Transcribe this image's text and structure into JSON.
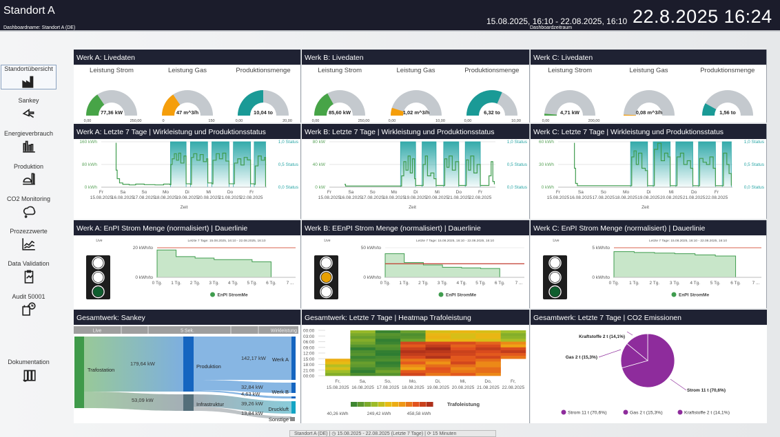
{
  "header": {
    "title": "Standort A",
    "dashboard_name": "Dashboardname: Standort A (DE)",
    "date_range": "15.08.2025, 16:10 - 22.08.2025, 16:10",
    "date_range_label": "Dashboardzeitraum",
    "clock": "22.8.2025  16:24"
  },
  "sidebar": {
    "items": [
      {
        "label": "Standortübersicht",
        "icon": "factory-icon",
        "selected": true
      },
      {
        "label": "Sankey",
        "icon": "sankey-icon"
      },
      {
        "label": "Energieverbrauch",
        "icon": "bar-chart-icon"
      },
      {
        "label": "Produktion",
        "icon": "production-tank-icon"
      },
      {
        "label": "CO2 Monitoring",
        "icon": "cloud-icon"
      },
      {
        "label": "Prozezzwerte",
        "icon": "line-chart-icon"
      },
      {
        "label": "Data Validation",
        "icon": "clipboard-icon"
      },
      {
        "label": "Audit 50001",
        "icon": "calendar-clock-icon"
      },
      {
        "label": "Dokumentation",
        "icon": "binders-icon"
      }
    ]
  },
  "colors": {
    "strom": "#47a447",
    "gas": "#f59e0b",
    "produktion": "#1a9a96",
    "gauge_bg": "#c4c9ce",
    "status": "#2aa6a6",
    "line": "#3f9c4e",
    "limit": "#e08070",
    "co2": "#8e2c9c",
    "panel_header": "#1f2233"
  },
  "live": [
    {
      "title": "Werk A: Livedaten",
      "gauges": [
        {
          "label": "Leistung Strom",
          "value": "77,36 kW",
          "min": "0,00",
          "max": "250,00",
          "fraction": 0.31,
          "color": "strom"
        },
        {
          "label": "Leistung Gas",
          "value": "47 m^3/h",
          "min": "0",
          "max": "150",
          "fraction": 0.31,
          "color": "gas"
        },
        {
          "label": "Produktionsmenge",
          "value": "10,04 to",
          "min": "0,00",
          "max": "20,00",
          "fraction": 0.5,
          "color": "produktion"
        }
      ]
    },
    {
      "title": "Werk B: Livedaten",
      "gauges": [
        {
          "label": "Leistung Strom",
          "value": "85,60 kW",
          "min": "0,00",
          "max": "250,00",
          "fraction": 0.34,
          "color": "strom"
        },
        {
          "label": "Leistung Gas",
          "value": "1,02 m^3/h",
          "min": "0,00",
          "max": "10,00",
          "fraction": 0.1,
          "color": "gas"
        },
        {
          "label": "Produktionsmenge",
          "value": "6,32 to",
          "min": "0,00",
          "max": "10,00",
          "fraction": 0.63,
          "color": "produktion"
        }
      ]
    },
    {
      "title": "Werk C: Livedaten",
      "gauges": [
        {
          "label": "Leistung Strom",
          "value": "4,71 kW",
          "min": "0,00",
          "max": "200,00",
          "fraction": 0.024,
          "color": "strom"
        },
        {
          "label": "Leistung Gas",
          "value": "0,08 m^3/h",
          "min": "",
          "max": "",
          "fraction": 0.01,
          "color": "gas"
        },
        {
          "label": "Produktionsmenge",
          "value": "1,56 to",
          "min": "",
          "max": "",
          "fraction": 0.16,
          "color": "produktion"
        }
      ]
    }
  ],
  "chart_data": [
    {
      "type": "line",
      "title": "Werk A: Letzte 7 Tage | Wirkleistung und Produktionsstatus",
      "xlabel": "Zeit",
      "xticks": [
        [
          "Fr",
          "15.08.2025"
        ],
        [
          "Sa",
          "16.08.2025"
        ],
        [
          "So",
          "17.08.2025"
        ],
        [
          "Mo",
          "18.08.2025"
        ],
        [
          "Di",
          "19.08.2025"
        ],
        [
          "Mi",
          "20.08.2025"
        ],
        [
          "Do",
          "21.08.2025"
        ],
        [
          "Fr",
          "22.08.2025"
        ]
      ],
      "xlim_days": [
        0,
        7.7
      ],
      "ylim": [
        0,
        160
      ],
      "yticks": [
        "0 kWh",
        "80 kWh",
        "160 kWh"
      ],
      "y2ticks": [
        "0,0 Status",
        "0,5 Status",
        "1,0 Status"
      ],
      "status_on": [
        [
          3.22,
          3.95
        ],
        [
          4.15,
          4.95
        ],
        [
          5.15,
          5.95
        ],
        [
          6.15,
          6.95
        ],
        [
          7.12,
          7.65
        ]
      ],
      "power": [
        [
          0.67,
          155
        ],
        [
          0.69,
          60
        ],
        [
          0.74,
          30
        ],
        [
          0.85,
          15
        ],
        [
          1,
          10
        ],
        [
          1.3,
          8
        ],
        [
          1.6,
          11
        ],
        [
          2,
          9
        ],
        [
          2.5,
          8
        ],
        [
          2.9,
          11
        ],
        [
          3.2,
          9
        ],
        [
          3.24,
          80
        ],
        [
          3.3,
          100
        ],
        [
          3.4,
          118
        ],
        [
          3.5,
          95
        ],
        [
          3.6,
          120
        ],
        [
          3.7,
          85
        ],
        [
          3.85,
          110
        ],
        [
          3.95,
          12
        ],
        [
          4.15,
          10
        ],
        [
          4.2,
          105
        ],
        [
          4.3,
          118
        ],
        [
          4.45,
          95
        ],
        [
          4.6,
          115
        ],
        [
          4.75,
          90
        ],
        [
          4.9,
          100
        ],
        [
          4.96,
          15
        ],
        [
          5.15,
          12
        ],
        [
          5.2,
          95
        ],
        [
          5.35,
          118
        ],
        [
          5.5,
          100
        ],
        [
          5.65,
          120
        ],
        [
          5.8,
          92
        ],
        [
          5.95,
          12
        ],
        [
          6.15,
          12
        ],
        [
          6.2,
          85
        ],
        [
          6.35,
          100
        ],
        [
          6.5,
          78
        ],
        [
          6.65,
          105
        ],
        [
          6.8,
          96
        ],
        [
          6.95,
          12
        ],
        [
          7.12,
          10
        ],
        [
          7.17,
          75
        ],
        [
          7.3,
          110
        ],
        [
          7.45,
          95
        ],
        [
          7.6,
          105
        ],
        [
          7.65,
          2
        ]
      ]
    },
    {
      "type": "line",
      "title": "Werk B: Letzte 7 Tage | Wirkleistung und Produktionsstatus",
      "xlabel": "Zeit",
      "xticks": [
        [
          "Fr",
          "15.08.2025"
        ],
        [
          "Sa",
          "16.08.2025"
        ],
        [
          "So",
          "17.08.2025"
        ],
        [
          "Mo",
          "18.08.2025"
        ],
        [
          "Di",
          "19.08.2025"
        ],
        [
          "Mi",
          "20.08.2025"
        ],
        [
          "Do",
          "21.08.2025"
        ],
        [
          "Fr",
          "22.08.2025"
        ]
      ],
      "xlim_days": [
        0,
        7.7
      ],
      "ylim": [
        0,
        80
      ],
      "yticks": [
        "0 kW",
        "40 kW",
        "80 kW"
      ],
      "y2ticks": [
        "0,0 Status",
        "0,5 Status",
        "1,0 Status"
      ],
      "status_on": [
        [
          3.3,
          4.0
        ],
        [
          4.3,
          4.95
        ],
        [
          5.3,
          6.0
        ],
        [
          6.3,
          7.0
        ]
      ],
      "power": [
        [
          0.7,
          5
        ],
        [
          0.75,
          2
        ],
        [
          1.5,
          2
        ],
        [
          2.5,
          2
        ],
        [
          3.3,
          2
        ],
        [
          3.35,
          20
        ],
        [
          3.45,
          45
        ],
        [
          3.55,
          30
        ],
        [
          3.65,
          55
        ],
        [
          3.75,
          25
        ],
        [
          3.85,
          50
        ],
        [
          3.95,
          15
        ],
        [
          4.0,
          3
        ],
        [
          4.3,
          3
        ],
        [
          4.35,
          40
        ],
        [
          4.45,
          55
        ],
        [
          4.55,
          20
        ],
        [
          4.7,
          25
        ],
        [
          4.85,
          15
        ],
        [
          4.95,
          3
        ],
        [
          5.3,
          3
        ],
        [
          5.35,
          50
        ],
        [
          5.45,
          35
        ],
        [
          5.55,
          55
        ],
        [
          5.7,
          30
        ],
        [
          5.85,
          45
        ],
        [
          6.0,
          3
        ],
        [
          6.3,
          3
        ],
        [
          6.35,
          48
        ],
        [
          6.45,
          30
        ],
        [
          6.55,
          55
        ],
        [
          6.7,
          25
        ],
        [
          6.85,
          40
        ],
        [
          7.0,
          3
        ],
        [
          7.3,
          3
        ],
        [
          7.4,
          20
        ],
        [
          7.5,
          45
        ],
        [
          7.58,
          10
        ],
        [
          7.65,
          5
        ]
      ]
    },
    {
      "type": "line",
      "title": "Werk C: Letzte 7 Tage | Wirkleistung und Produktionsstatus",
      "xlabel": "Zeit",
      "xticks": [
        [
          "Fr",
          "15.08.2025"
        ],
        [
          "Sa",
          "16.08.2025"
        ],
        [
          "So",
          "17.08.2025"
        ],
        [
          "Mo",
          "18.08.2025"
        ],
        [
          "Di",
          "19.08.2025"
        ],
        [
          "Mi",
          "20.08.2025"
        ],
        [
          "Do",
          "21.08.2025"
        ],
        [
          "Fr",
          "22.08.2025"
        ]
      ],
      "xlim_days": [
        0,
        7.7
      ],
      "ylim": [
        0,
        60
      ],
      "yticks": [
        "0 kWh",
        "30 kWh",
        "60 kWh"
      ],
      "y2ticks": [
        "0,0 Status",
        "0,5 Status",
        "1,0 Status"
      ],
      "status_on": [
        [
          3.2,
          3.95
        ],
        [
          4.2,
          4.95
        ],
        [
          5.2,
          5.95
        ],
        [
          6.2,
          6.95
        ],
        [
          7.25,
          7.65
        ]
      ],
      "power": [
        [
          0.7,
          58
        ],
        [
          0.72,
          25
        ],
        [
          0.77,
          5
        ],
        [
          0.85,
          2
        ],
        [
          1.5,
          2
        ],
        [
          2.5,
          2
        ],
        [
          3.2,
          2
        ],
        [
          3.25,
          40
        ],
        [
          3.35,
          48
        ],
        [
          3.45,
          30
        ],
        [
          3.55,
          45
        ],
        [
          3.7,
          25
        ],
        [
          3.85,
          22
        ],
        [
          3.95,
          2
        ],
        [
          4.2,
          2
        ],
        [
          4.25,
          50
        ],
        [
          4.4,
          58
        ],
        [
          4.55,
          35
        ],
        [
          4.7,
          45
        ],
        [
          4.85,
          40
        ],
        [
          4.95,
          2
        ],
        [
          5.2,
          2
        ],
        [
          5.25,
          40
        ],
        [
          5.4,
          45
        ],
        [
          5.55,
          30
        ],
        [
          5.7,
          35
        ],
        [
          5.85,
          25
        ],
        [
          5.95,
          2
        ],
        [
          6.2,
          2
        ],
        [
          6.25,
          38
        ],
        [
          6.4,
          33
        ],
        [
          6.55,
          30
        ],
        [
          6.7,
          40
        ],
        [
          6.85,
          25
        ],
        [
          6.95,
          2
        ],
        [
          7.25,
          2
        ],
        [
          7.3,
          45
        ],
        [
          7.45,
          30
        ],
        [
          7.55,
          18
        ],
        [
          7.65,
          2
        ]
      ]
    },
    {
      "type": "area",
      "title": "Werk A: EnPI Strom Menge (normalisiert) | Dauerlinie",
      "live_label": "Live",
      "subtitle": "Letzte 7 Tage: 15.08.2025, 16:10 - 22.08.2025, 16:10",
      "ylim": [
        0,
        20
      ],
      "yticks": [
        "0 kWh/to",
        "20 kWh/to"
      ],
      "xticks": [
        "0 Tg.",
        "1 Tg.",
        "2 Tg.",
        "3 Tg.",
        "4 Tg.",
        "5 Tg.",
        "6 Tg.",
        "7 ..."
      ],
      "values": [
        18.5,
        14,
        13,
        12,
        12,
        10.5
      ],
      "limit": 20,
      "legend": "EnPI StromMe",
      "traffic_light": "green"
    },
    {
      "type": "area",
      "title": "Werk B: EEnPI Strom Menge (normalisiert) | Dauerlinie",
      "live_label": "Live",
      "subtitle": "Letzte 7 Tage: 15.08.2025, 16:10 - 22.08.2025, 16:10",
      "ylim": [
        0,
        50
      ],
      "yticks": [
        "0 kWh/to",
        "50 kWh/to"
      ],
      "xticks": [
        "0 Tg.",
        "1 Tg.",
        "2 Tg.",
        "3 Tg.",
        "4 Tg.",
        "5 Tg.",
        "6 Tg.",
        "7 ..."
      ],
      "values": [
        40,
        25,
        21,
        17,
        16,
        15
      ],
      "limit": 23,
      "legend": "EnPI StromMe",
      "traffic_light": "yellow"
    },
    {
      "type": "area",
      "title": "Werk C: EnPI Strom Menge (normalisiert) | Dauerlinie",
      "live_label": "Live",
      "subtitle": "Letzte 7 Tage: 15.08.2025, 16:10 - 22.08.2025, 16:10",
      "ylim": [
        0,
        5
      ],
      "yticks": [
        "0 kWh/to",
        "5 kWh/to"
      ],
      "xticks": [
        "0 Tg.",
        "1 Tg.",
        "2 Tg.",
        "3 Tg.",
        "4 Tg.",
        "5 Tg.",
        "6 Tg.",
        "7 ..."
      ],
      "values": [
        4.35,
        4.2,
        4.1,
        4.0,
        3.8,
        3.6
      ],
      "limit": 5,
      "legend": "EnPI StromMe",
      "traffic_light": "green"
    },
    {
      "type": "heatmap",
      "title": "Gesamtwerk: Letzte 7 Tage | Heatmap Trafoleistung",
      "yticks": [
        "00:00",
        "03:00",
        "06:00",
        "09:00",
        "12:00",
        "15:00",
        "18:00",
        "21:00",
        "00:00"
      ],
      "xticks": [
        [
          "Fr,",
          "15.08.2025"
        ],
        [
          "Sa,",
          "16.08.2025"
        ],
        [
          "So,",
          "17.08.2025"
        ],
        [
          "Mo,",
          "18.08.2025"
        ],
        [
          "Di,",
          "19.08.2025"
        ],
        [
          "Mi,",
          "20.08.2025"
        ],
        [
          "Do,",
          "21.08.2025"
        ],
        [
          "Fr,",
          "22.08.2025"
        ]
      ],
      "values": [
        [
          null,
          140,
          70,
          90,
          230,
          230,
          230,
          150
        ],
        [
          null,
          120,
          60,
          100,
          240,
          230,
          230,
          160
        ],
        [
          null,
          100,
          70,
          380,
          400,
          370,
          370,
          300
        ],
        [
          null,
          60,
          60,
          420,
          440,
          390,
          400,
          400
        ],
        [
          null,
          70,
          50,
          400,
          420,
          380,
          380,
          350
        ],
        [
          250,
          90,
          60,
          350,
          320,
          380,
          330,
          null
        ],
        [
          200,
          80,
          70,
          300,
          360,
          330,
          330,
          null
        ],
        [
          150,
          60,
          100,
          380,
          350,
          350,
          330,
          null
        ]
      ],
      "range": [
        40.26,
        458.58
      ],
      "legend_title": "Trafoleistung",
      "legend_labels": [
        "40,26 kWh",
        "249,42 kWh",
        "458,58 kWh"
      ]
    },
    {
      "type": "pie",
      "title": "Gesamtwerk: Letzte 7 Tage | CO2 Emissionen",
      "slices": [
        {
          "name": "Strom",
          "value": 70.6,
          "label": "Strom 11 t (70,6%)"
        },
        {
          "name": "Gas",
          "value": 15.3,
          "label": "Gas 2 t (15,3%)"
        },
        {
          "name": "Kraftstoffe",
          "value": 14.1,
          "label": "Kraftstoffe 2 t (14,1%)"
        }
      ]
    }
  ],
  "sankey": {
    "title": "Gesamtwerk: Sankey",
    "bar": {
      "left": "Live",
      "mid": "5 Sek.",
      "right": "Wirkleistung"
    },
    "nodes": {
      "trafo": "Trafostation",
      "prod": "Produktion",
      "infra": "Infrastruktur",
      "werk_a": "Werk A",
      "werk_b": "Werk B",
      "druckluft": "Druckluft",
      "sonstige": "Sonstige"
    },
    "flows": {
      "trafo_prod": "179,64 kW",
      "trafo_infra": "53,09 kW",
      "prod_a": "142,17 kW",
      "prod_b": "32,84 kW",
      "prod_c": "4,63 kW",
      "infra_druck": "39,26 kW",
      "infra_sonst": "13,84 kW"
    }
  },
  "footer": "Standort A (DE)  |  ◷ 15.08.2025 - 22.08.2025 (Letzte 7 Tage)  |  ⟳ 15 Minuten"
}
